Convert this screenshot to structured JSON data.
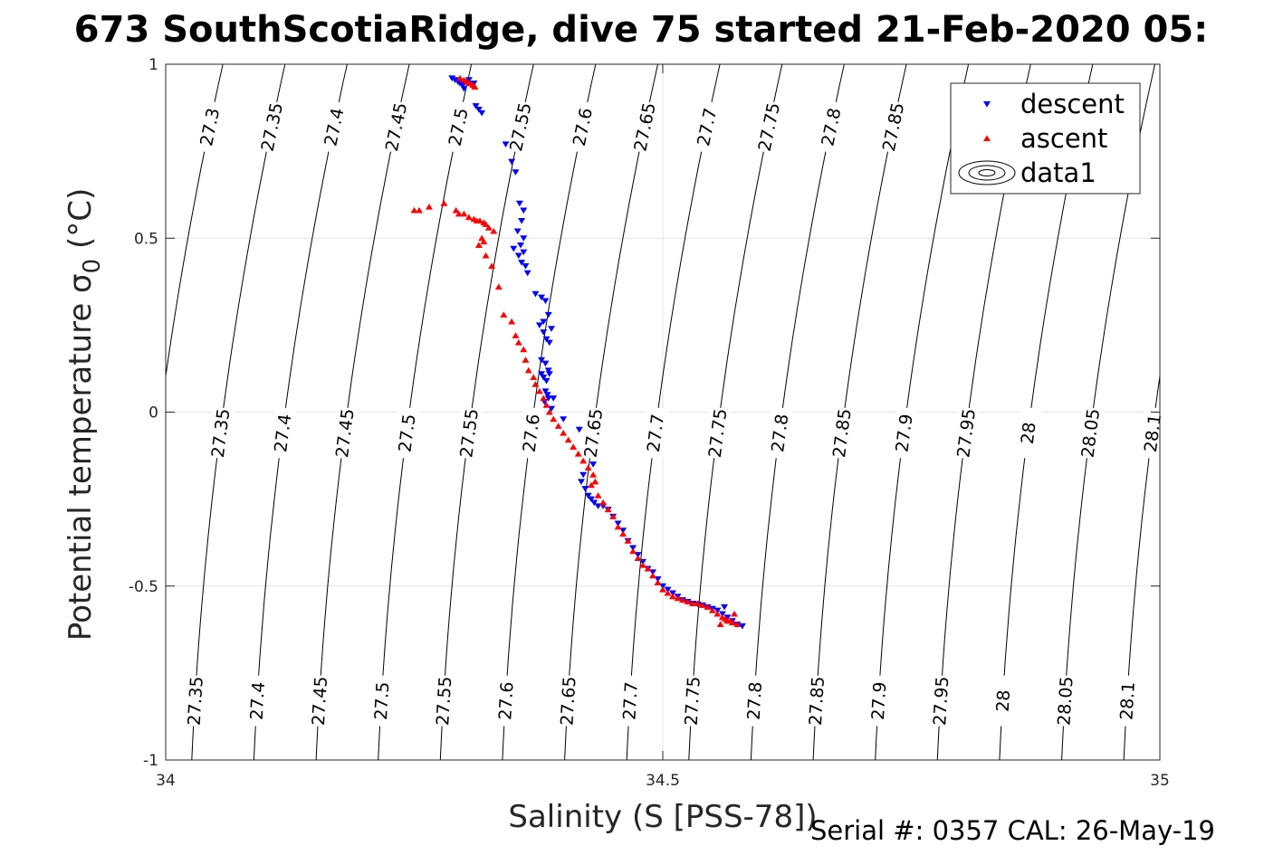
{
  "title": "673 SouthScotiaRidge, dive 75 started 21-Feb-2020 05:",
  "footer": "Serial #: 0357  CAL: 26-May-19",
  "chart_data": {
    "type": "scatter",
    "xlabel": "Salinity (S [PSS-78])",
    "ylabel": "Potential temperature σ",
    "ylabel_subscript": "0",
    "ylabel_unit": " (°C)",
    "xlim": [
      34,
      35
    ],
    "ylim": [
      -1,
      1
    ],
    "x_ticks": [
      34,
      34.5,
      35
    ],
    "x_tick_labels": [
      "34",
      "34.5",
      "35"
    ],
    "y_ticks": [
      -1,
      -0.5,
      0,
      0.5,
      1
    ],
    "y_tick_labels": [
      "-1",
      "-0.5",
      "0",
      "0.5",
      "1"
    ],
    "grid": true,
    "legend_position": "top-right",
    "legend": [
      "descent",
      "ascent",
      "data1"
    ],
    "contours": {
      "name": "data1",
      "levels": [
        27.3,
        27.35,
        27.4,
        27.45,
        27.5,
        27.55,
        27.6,
        27.65,
        27.7,
        27.75,
        27.8,
        27.85,
        27.9,
        27.95,
        28,
        28.05,
        28.1
      ],
      "level_labels": [
        "27.3",
        "27.35",
        "27.4",
        "27.45",
        "27.5",
        "27.55",
        "27.6",
        "27.65",
        "27.7",
        "27.75",
        "27.8",
        "27.85",
        "27.9",
        "27.95",
        "28",
        "28.05",
        "28.1"
      ],
      "label_rows": [
        {
          "theta": 0.82,
          "levels": [
            27.3,
            27.35,
            27.4,
            27.45,
            27.5,
            27.55,
            27.6,
            27.65,
            27.7,
            27.75,
            27.8,
            27.85
          ],
          "labels": [
            "27.3",
            "27.35",
            "27.4",
            "27.45",
            "27.5",
            "27.55",
            "27.6",
            "27.65",
            "27.7",
            "27.75",
            "27.8",
            "27.85"
          ]
        },
        {
          "theta": -0.06,
          "levels": [
            27.35,
            27.4,
            27.45,
            27.5,
            27.55,
            27.6,
            27.65,
            27.7,
            27.75,
            27.8,
            27.85,
            27.9,
            27.95,
            28,
            28.05,
            28.1
          ],
          "labels": [
            "27.35",
            "27.4",
            "27.45",
            "27.5",
            "27.55",
            "27.6",
            "27.65",
            "27.7",
            "27.75",
            "27.8",
            "27.85",
            "27.9",
            "27.95",
            "28",
            "28.05",
            "28.1"
          ]
        },
        {
          "theta": -0.83,
          "levels": [
            27.35,
            27.4,
            27.45,
            27.5,
            27.55,
            27.6,
            27.65,
            27.7,
            27.75,
            27.8,
            27.85,
            27.9,
            27.95,
            28,
            28.05,
            28.1
          ],
          "labels": [
            "27.35",
            "27.4",
            "27.45",
            "27.5",
            "27.55",
            "27.6",
            "27.65",
            "27.7",
            "27.75",
            "27.8",
            "27.85",
            "27.9",
            "27.95",
            "28",
            "28.05",
            "28.1"
          ]
        }
      ]
    },
    "series": [
      {
        "name": "descent",
        "marker": "triangle-down",
        "color": "#0000ff",
        "points": [
          [
            34.288,
            0.96
          ],
          [
            34.291,
            0.955
          ],
          [
            34.294,
            0.95
          ],
          [
            34.296,
            0.945
          ],
          [
            34.299,
            0.94
          ],
          [
            34.302,
            0.95
          ],
          [
            34.305,
            0.955
          ],
          [
            34.31,
            0.945
          ],
          [
            34.312,
            0.88
          ],
          [
            34.315,
            0.87
          ],
          [
            34.318,
            0.86
          ],
          [
            34.3,
            0.93
          ],
          [
            34.342,
            0.77
          ],
          [
            34.348,
            0.72
          ],
          [
            34.352,
            0.69
          ],
          [
            34.356,
            0.6
          ],
          [
            34.36,
            0.58
          ],
          [
            34.358,
            0.55
          ],
          [
            34.354,
            0.52
          ],
          [
            34.36,
            0.5
          ],
          [
            34.357,
            0.48
          ],
          [
            34.35,
            0.47
          ],
          [
            34.355,
            0.45
          ],
          [
            34.36,
            0.46
          ],
          [
            34.362,
            0.42
          ],
          [
            34.358,
            0.43
          ],
          [
            34.364,
            0.4
          ],
          [
            34.372,
            0.34
          ],
          [
            34.378,
            0.33
          ],
          [
            34.382,
            0.32
          ],
          [
            34.385,
            0.28
          ],
          [
            34.38,
            0.26
          ],
          [
            34.376,
            0.25
          ],
          [
            34.38,
            0.23
          ],
          [
            34.383,
            0.21
          ],
          [
            34.386,
            0.2
          ],
          [
            34.388,
            0.24
          ],
          [
            34.378,
            0.15
          ],
          [
            34.382,
            0.14
          ],
          [
            34.385,
            0.12
          ],
          [
            34.378,
            0.11
          ],
          [
            34.38,
            0.1
          ],
          [
            34.383,
            0.09
          ],
          [
            34.386,
            0.11
          ],
          [
            34.382,
            0.06
          ],
          [
            34.384,
            0.05
          ],
          [
            34.381,
            0.03
          ],
          [
            34.385,
            0.04
          ],
          [
            34.39,
            0.04
          ],
          [
            34.388,
            0.01
          ],
          [
            34.4,
            -0.02
          ],
          [
            34.416,
            -0.05
          ],
          [
            34.43,
            -0.15
          ],
          [
            34.42,
            -0.18
          ],
          [
            34.418,
            -0.2
          ],
          [
            34.422,
            -0.22
          ],
          [
            34.425,
            -0.24
          ],
          [
            34.428,
            -0.25
          ],
          [
            34.431,
            -0.26
          ],
          [
            34.435,
            -0.27
          ],
          [
            34.44,
            -0.27
          ],
          [
            34.445,
            -0.28
          ],
          [
            34.45,
            -0.3
          ],
          [
            34.455,
            -0.32
          ],
          [
            34.46,
            -0.34
          ],
          [
            34.465,
            -0.37
          ],
          [
            34.47,
            -0.39
          ],
          [
            34.475,
            -0.41
          ],
          [
            34.48,
            -0.43
          ],
          [
            34.485,
            -0.45
          ],
          [
            34.49,
            -0.46
          ],
          [
            34.495,
            -0.48
          ],
          [
            34.5,
            -0.5
          ],
          [
            34.505,
            -0.51
          ],
          [
            34.51,
            -0.52
          ],
          [
            34.515,
            -0.53
          ],
          [
            34.52,
            -0.54
          ],
          [
            34.525,
            -0.545
          ],
          [
            34.53,
            -0.55
          ],
          [
            34.535,
            -0.552
          ],
          [
            34.54,
            -0.555
          ],
          [
            34.545,
            -0.56
          ],
          [
            34.55,
            -0.565
          ],
          [
            34.555,
            -0.57
          ],
          [
            34.56,
            -0.58
          ],
          [
            34.565,
            -0.59
          ],
          [
            34.57,
            -0.6
          ],
          [
            34.575,
            -0.61
          ],
          [
            34.58,
            -0.615
          ],
          [
            34.562,
            -0.56
          ]
        ]
      },
      {
        "name": "ascent",
        "marker": "triangle-up",
        "color": "#ff0000",
        "points": [
          [
            34.296,
            0.96
          ],
          [
            34.3,
            0.955
          ],
          [
            34.303,
            0.95
          ],
          [
            34.306,
            0.945
          ],
          [
            34.309,
            0.94
          ],
          [
            34.311,
            0.935
          ],
          [
            34.25,
            0.58
          ],
          [
            34.255,
            0.58
          ],
          [
            34.265,
            0.59
          ],
          [
            34.28,
            0.6
          ],
          [
            34.292,
            0.58
          ],
          [
            34.295,
            0.57
          ],
          [
            34.3,
            0.57
          ],
          [
            34.305,
            0.56
          ],
          [
            34.31,
            0.555
          ],
          [
            34.313,
            0.55
          ],
          [
            34.316,
            0.55
          ],
          [
            34.32,
            0.545
          ],
          [
            34.322,
            0.54
          ],
          [
            34.325,
            0.53
          ],
          [
            34.33,
            0.52
          ],
          [
            34.318,
            0.5
          ],
          [
            34.315,
            0.48
          ],
          [
            34.32,
            0.49
          ],
          [
            34.322,
            0.45
          ],
          [
            34.328,
            0.42
          ],
          [
            34.335,
            0.36
          ],
          [
            34.34,
            0.28
          ],
          [
            34.348,
            0.26
          ],
          [
            34.352,
            0.22
          ],
          [
            34.355,
            0.2
          ],
          [
            34.36,
            0.18
          ],
          [
            34.362,
            0.15
          ],
          [
            34.365,
            0.12
          ],
          [
            34.37,
            0.1
          ],
          [
            34.372,
            0.08
          ],
          [
            34.376,
            0.06
          ],
          [
            34.38,
            0.04
          ],
          [
            34.383,
            0.02
          ],
          [
            34.386,
            0.0
          ],
          [
            34.39,
            -0.02
          ],
          [
            34.395,
            -0.04
          ],
          [
            34.4,
            -0.06
          ],
          [
            34.405,
            -0.08
          ],
          [
            34.41,
            -0.1
          ],
          [
            34.415,
            -0.12
          ],
          [
            34.42,
            -0.14
          ],
          [
            34.425,
            -0.16
          ],
          [
            34.43,
            -0.18
          ],
          [
            34.432,
            -0.2
          ],
          [
            34.428,
            -0.21
          ],
          [
            34.435,
            -0.24
          ],
          [
            34.44,
            -0.26
          ],
          [
            34.445,
            -0.28
          ],
          [
            34.45,
            -0.3
          ],
          [
            34.455,
            -0.33
          ],
          [
            34.46,
            -0.35
          ],
          [
            34.465,
            -0.37
          ],
          [
            34.47,
            -0.4
          ],
          [
            34.475,
            -0.42
          ],
          [
            34.48,
            -0.44
          ],
          [
            34.485,
            -0.45
          ],
          [
            34.49,
            -0.47
          ],
          [
            34.495,
            -0.49
          ],
          [
            34.5,
            -0.51
          ],
          [
            34.505,
            -0.52
          ],
          [
            34.51,
            -0.53
          ],
          [
            34.515,
            -0.535
          ],
          [
            34.52,
            -0.54
          ],
          [
            34.525,
            -0.545
          ],
          [
            34.53,
            -0.55
          ],
          [
            34.535,
            -0.55
          ],
          [
            34.54,
            -0.555
          ],
          [
            34.545,
            -0.56
          ],
          [
            34.55,
            -0.57
          ],
          [
            34.555,
            -0.58
          ],
          [
            34.56,
            -0.59
          ],
          [
            34.565,
            -0.6
          ],
          [
            34.57,
            -0.605
          ],
          [
            34.575,
            -0.61
          ],
          [
            34.568,
            -0.6
          ],
          [
            34.563,
            -0.595
          ],
          [
            34.558,
            -0.61
          ],
          [
            34.572,
            -0.58
          ]
        ]
      }
    ]
  }
}
